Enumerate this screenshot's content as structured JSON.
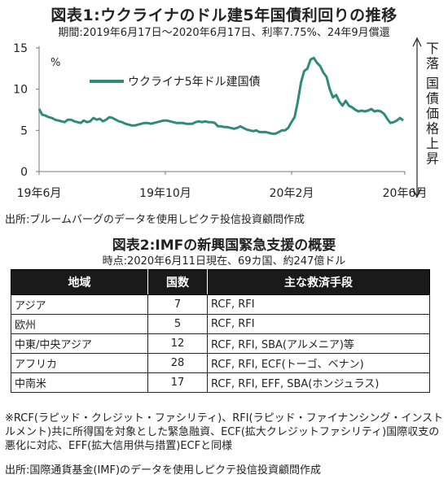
{
  "chart_title": "図表1:ウクライナのドル建5年国債利回りの推移",
  "chart_subtitle": "期間:2019年6月17日～2020年6月17日、利率7.75%、24年9月償還",
  "chart_data": {
    "type": "line",
    "unit": "%",
    "ylim": [
      0,
      15
    ],
    "yticks": [
      "15",
      "10",
      "5",
      "0"
    ],
    "xticks": [
      "19年6月",
      "19年10月",
      "20年2月",
      "20年6月"
    ],
    "series": [
      {
        "name": "ウクライナ5年ドル建国債",
        "color": "#2e8b7a",
        "values": [
          7.6,
          6.9,
          6.8,
          6.6,
          6.5,
          6.3,
          6.2,
          6.1,
          6.0,
          6.3,
          6.3,
          6.1,
          6.0,
          5.9,
          6.2,
          6.0,
          6.1,
          6.5,
          6.3,
          6.4,
          6.1,
          6.3,
          6.6,
          6.5,
          6.3,
          6.1,
          6.0,
          5.8,
          5.7,
          5.6,
          5.6,
          5.7,
          5.8,
          5.9,
          5.9,
          5.8,
          5.9,
          6.0,
          6.1,
          6.2,
          6.2,
          6.1,
          6.0,
          5.9,
          5.9,
          5.9,
          5.8,
          5.8,
          5.8,
          6.0,
          6.1,
          6.0,
          6.1,
          6.0,
          6.0,
          5.9,
          5.5,
          5.5,
          5.4,
          5.4,
          5.3,
          5.2,
          5.3,
          5.5,
          5.3,
          5.1,
          5.0,
          4.9,
          5.0,
          4.8,
          4.8,
          4.8,
          4.7,
          4.6,
          4.6,
          4.8,
          5.0,
          5.0,
          5.3,
          6.0,
          6.6,
          8.5,
          10.8,
          12.2,
          12.5,
          13.6,
          13.8,
          13.2,
          12.8,
          12.0,
          11.5,
          10.0,
          9.0,
          9.3,
          8.5,
          8.0,
          8.6,
          8.0,
          7.8,
          7.5,
          7.3,
          7.4,
          7.3,
          7.4,
          7.6,
          7.3,
          7.4,
          7.3,
          7.0,
          6.4,
          5.9,
          6.0,
          6.2,
          6.5,
          6.2
        ]
      }
    ],
    "right_annotation": "下落 国債価格上昇"
  },
  "source1": "出所:ブルームバーグのデータを使用しピクテ投信投資顧問作成",
  "table_title": "図表2:IMFの新興国緊急支援の概要",
  "table_subtitle": "時点:2020年6月11日現在、69カ国、約247億ドル",
  "table": {
    "headers": [
      "地域",
      "国数",
      "主な救済手段"
    ],
    "rows": [
      [
        "アジア",
        "7",
        "RCF, RFI"
      ],
      [
        "欧州",
        "5",
        "RCF, RFI"
      ],
      [
        "中東/中央アジア",
        "12",
        "RCF, RFI, SBA(アルメニア)等"
      ],
      [
        "アフリカ",
        "28",
        "RCF, RFI, ECF(トーゴ、ベナン)"
      ],
      [
        "中南米",
        "17",
        "RCF, RFI, EFF, SBA(ホンジュラス)"
      ]
    ]
  },
  "note": "※RCF(ラピッド・クレジット・ファシリティ)、RFI(ラピッド・ファイナンシング・インストルメント)共に所得国を対象とした緊急融資、ECF(拡大クレジットファシリティ)国際収支の悪化に対応、EFF(拡大信用供与措置)ECFと同様",
  "source2": "出所:国際通貨基金(IMF)のデータを使用しピクテ投信投資顧問作成"
}
